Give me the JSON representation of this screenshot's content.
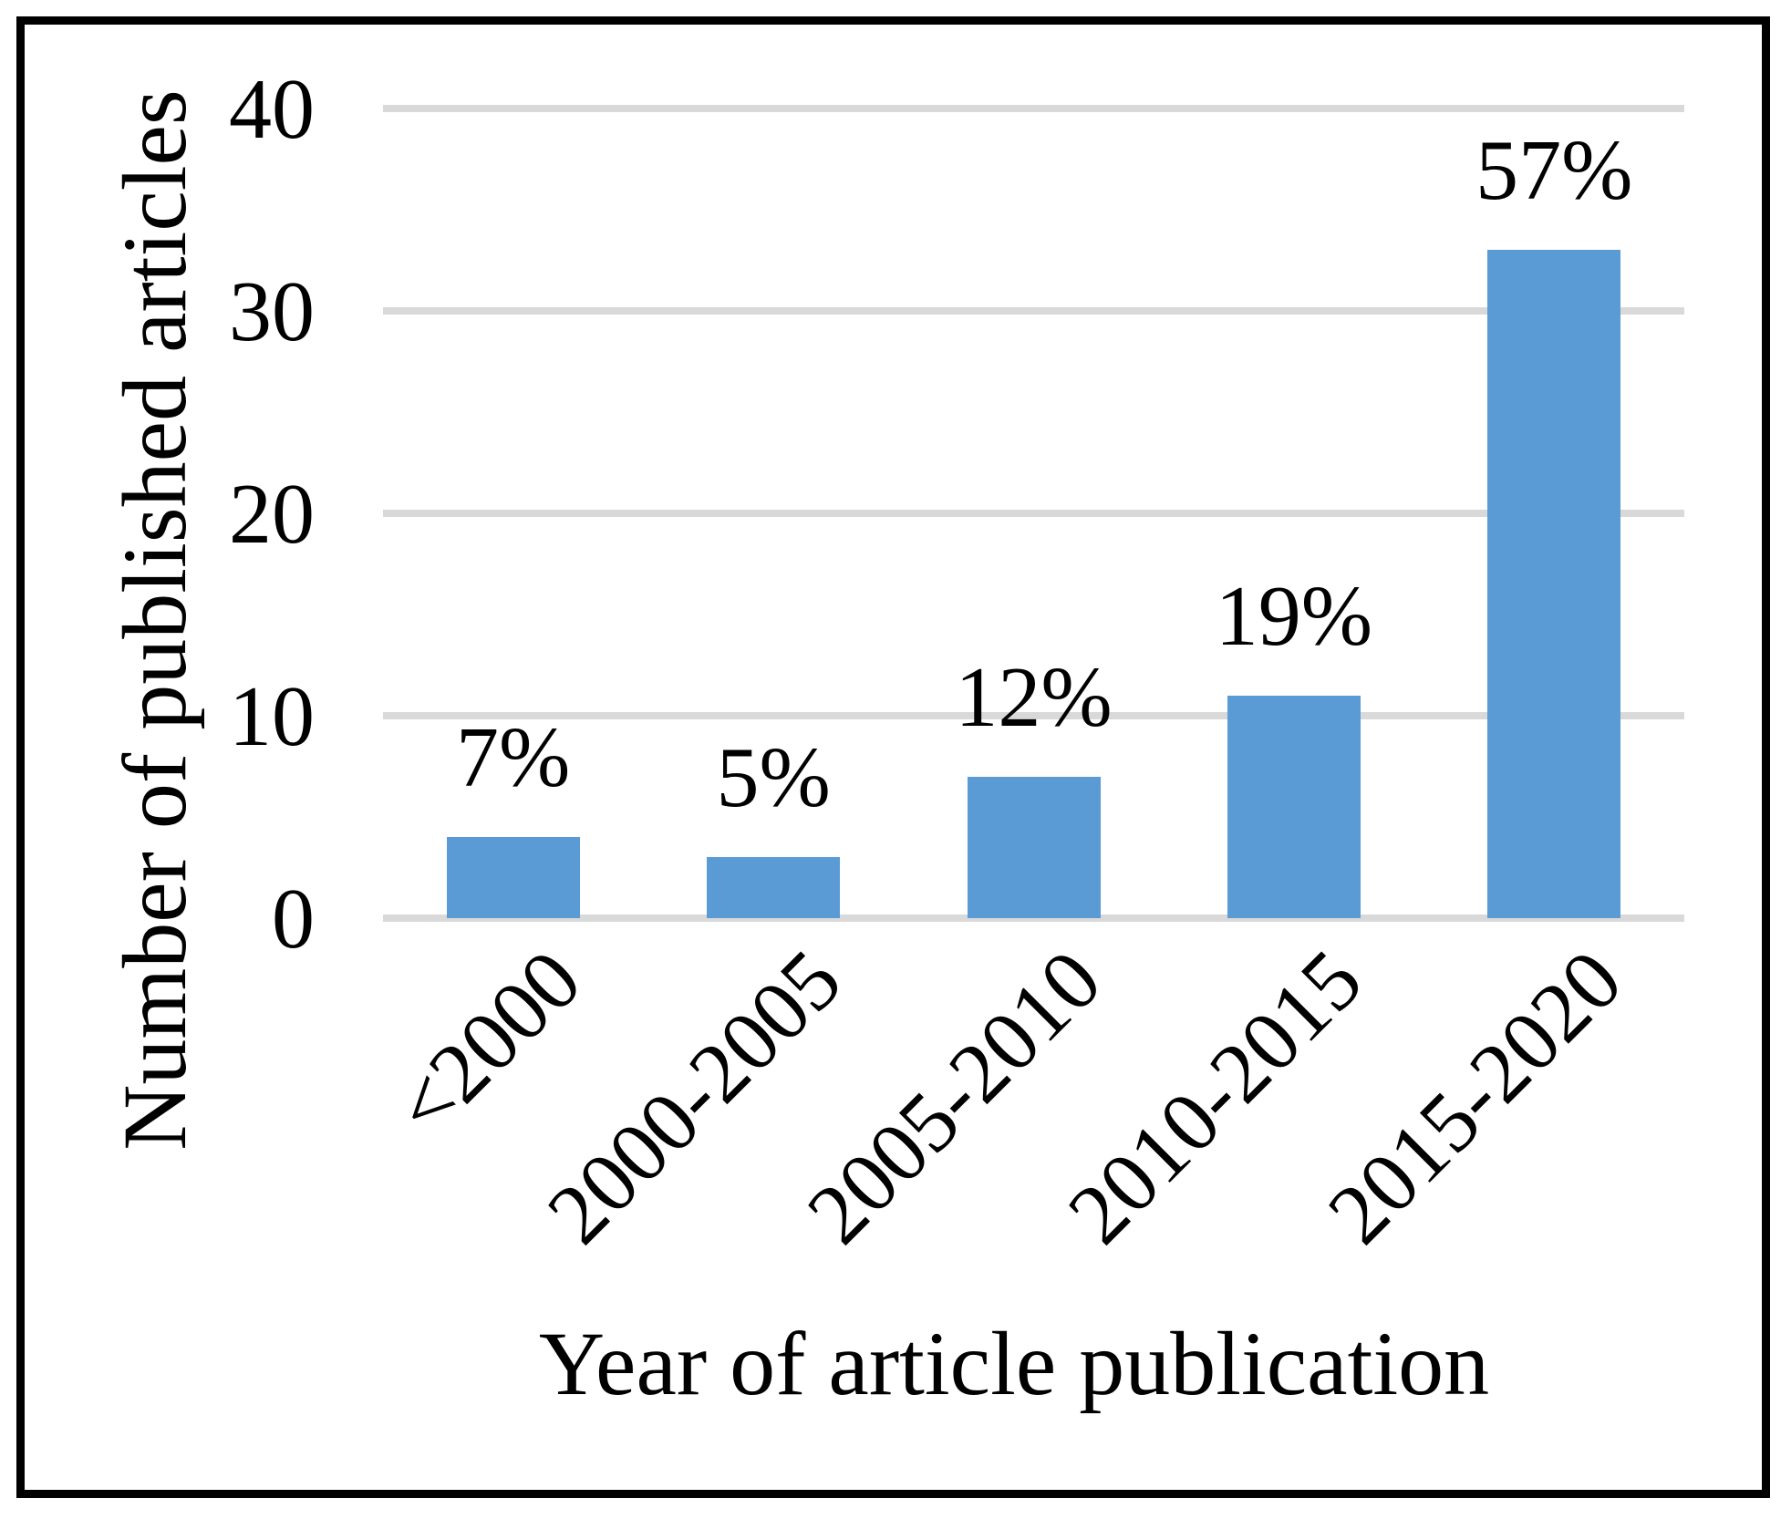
{
  "figure": {
    "background_color": "#FFFFFF",
    "border_color": "#000000"
  },
  "chart_data": {
    "type": "bar",
    "title": "",
    "xlabel": "Year of article publication",
    "ylabel": "Number of published articles",
    "categories": [
      "<2000",
      "2000-2005",
      "2005-2010",
      "2010-2015",
      "2015-2020"
    ],
    "values": [
      4,
      3,
      7,
      11,
      33
    ],
    "bar_labels": [
      "7%",
      "5%",
      "12%",
      "19%",
      "57%"
    ],
    "ylim": [
      0,
      40
    ],
    "yticks": [
      0,
      10,
      20,
      30,
      40
    ],
    "grid": "horizontal",
    "legend": "none",
    "category_label_rotation_deg": 45,
    "bar_color": "#5B9BD5",
    "gridline_color": "#D9D9D9",
    "text_color": "#000000"
  }
}
